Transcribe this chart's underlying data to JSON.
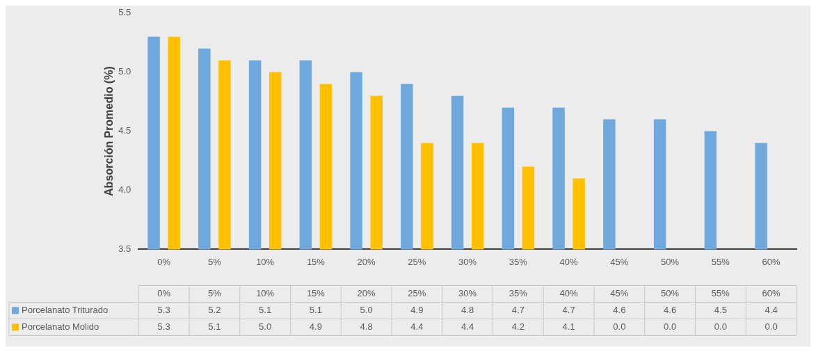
{
  "chart_data": {
    "type": "bar",
    "ylabel": "Absorción Promedio (%)",
    "categories": [
      "0%",
      "5%",
      "10%",
      "15%",
      "20%",
      "25%",
      "30%",
      "35%",
      "40%",
      "45%",
      "50%",
      "55%",
      "60%"
    ],
    "series": [
      {
        "name": "Porcelanato Triturado",
        "color": "#6fa8dc",
        "values": [
          5.3,
          5.2,
          5.1,
          5.1,
          5.0,
          4.9,
          4.8,
          4.7,
          4.7,
          4.6,
          4.6,
          4.5,
          4.4
        ],
        "value_labels": [
          "5.3",
          "5.2",
          "5.1",
          "5.1",
          "5.0",
          "4.9",
          "4.8",
          "4.7",
          "4.7",
          "4.6",
          "4.6",
          "4.5",
          "4.4"
        ]
      },
      {
        "name": "Porcelanato Molido",
        "color": "#ffc000",
        "values": [
          5.3,
          5.1,
          5.0,
          4.9,
          4.8,
          4.4,
          4.4,
          4.2,
          4.1,
          null,
          null,
          null,
          null
        ],
        "value_labels": [
          "5.3",
          "5.1",
          "5.0",
          "4.9",
          "4.8",
          "4.4",
          "4.4",
          "4.2",
          "4.1",
          "0.0",
          "0.0",
          "0.0",
          "0.0"
        ]
      }
    ],
    "ylim": [
      3.5,
      5.5
    ],
    "yticks": [
      3.5,
      {
        "value": 4,
        "label": "4.0"
      },
      4.5,
      {
        "value": 5,
        "label": "5.0"
      },
      5.5
    ],
    "grid": false,
    "legend": "bottom"
  }
}
